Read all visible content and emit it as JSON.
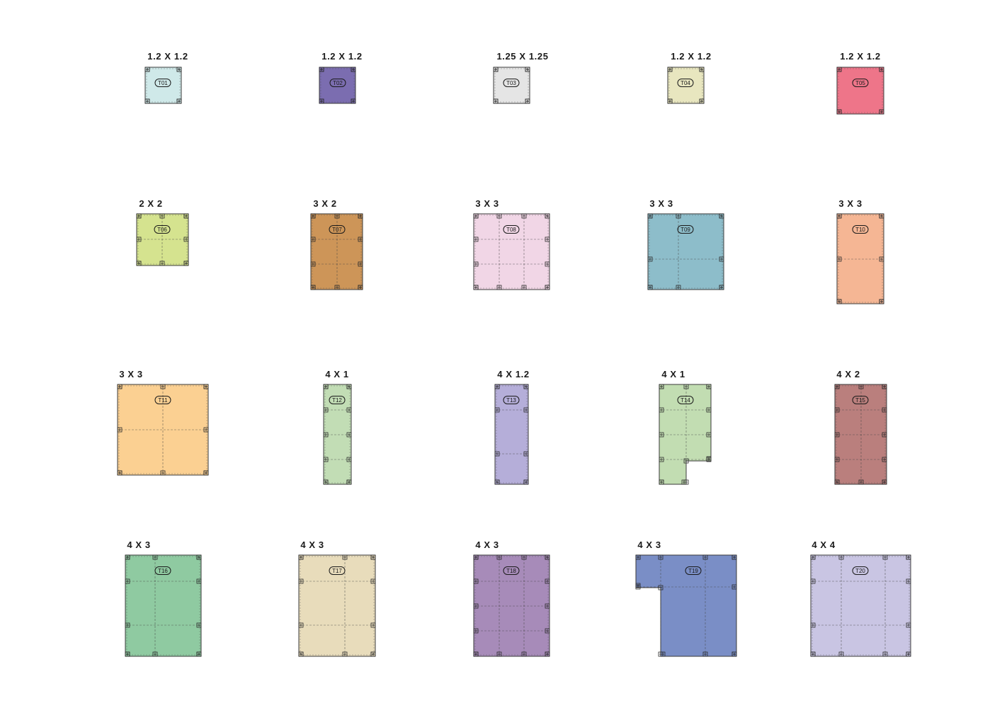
{
  "modules": [
    {
      "id": "T01",
      "size_label": "1.2 X 1.2",
      "color": "#cfe9e9"
    },
    {
      "id": "T02",
      "size_label": "1.2 X 1.2",
      "color": "#7b6db0"
    },
    {
      "id": "T03",
      "size_label": "1.25 X 1.25",
      "color": "#e5e5e5"
    },
    {
      "id": "T04",
      "size_label": "1.2 X 1.2",
      "color": "#e8e6bf"
    },
    {
      "id": "T05",
      "size_label": "1.2 X 1.2",
      "color": "#ee7589"
    },
    {
      "id": "T06",
      "size_label": "2 X 2",
      "color": "#d5e38f"
    },
    {
      "id": "T07",
      "size_label": "3 X 2",
      "color": "#cd9558"
    },
    {
      "id": "T08",
      "size_label": "3 X 3",
      "color": "#f1d6e6"
    },
    {
      "id": "T09",
      "size_label": "3 X 3",
      "color": "#8dbdca"
    },
    {
      "id": "T10",
      "size_label": "3 X 3",
      "color": "#f5b694"
    },
    {
      "id": "T11",
      "size_label": "3 X 3",
      "color": "#fbd092"
    },
    {
      "id": "T12",
      "size_label": "4 X 1",
      "color": "#c2ddb5"
    },
    {
      "id": "T13",
      "size_label": "4 X 1.2",
      "color": "#b5aed9"
    },
    {
      "id": "T14",
      "size_label": "4 X 1",
      "color": "#c2ddb2"
    },
    {
      "id": "T15",
      "size_label": "4 X 2",
      "color": "#ba7f7d"
    },
    {
      "id": "T16",
      "size_label": "4 X 3",
      "color": "#8fcaa1"
    },
    {
      "id": "T17",
      "size_label": "4 X 3",
      "color": "#e8dcbb"
    },
    {
      "id": "T18",
      "size_label": "4 X 3",
      "color": "#a78bb9"
    },
    {
      "id": "T19",
      "size_label": "4 X 3",
      "color": "#7a8ec6"
    },
    {
      "id": "T20",
      "size_label": "4 X 4",
      "color": "#c9c5e3"
    }
  ]
}
